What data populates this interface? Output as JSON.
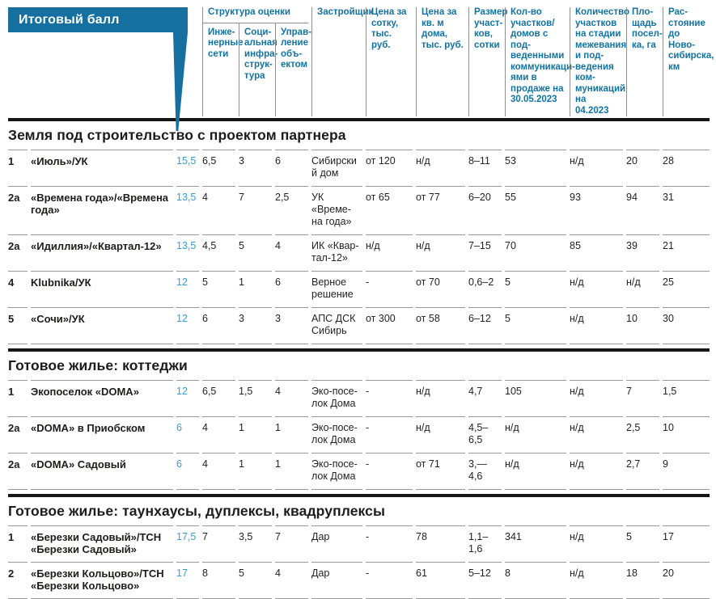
{
  "colors": {
    "accent_blue": "#15709f",
    "header_text_blue": "#1273a3",
    "score_blue": "#3f9acb",
    "rule_gray": "#999999",
    "rule_black": "#161616"
  },
  "callout": {
    "label": "Итоговый балл"
  },
  "header": {
    "group": "Структура оценки",
    "sub": [
      "Инже-нерные сети",
      "Соци-альная инфра-струк-тура",
      "Управ-ление объ-ектом"
    ],
    "cols": [
      "Застройщик",
      "Цена за сотку, тыс. руб.",
      "Цена за кв. м дома, тыс. руб.",
      "Размер участ-ков, сотки",
      "Кол-во участков/ домов с под-веденными коммуникаци-ями в продаже на 30.05.2023",
      "Количество участков на стадии межевания и под-ведения ком-муникаций на 04.2023",
      "Пло-щадь посел-ка, га",
      "Рас-стояние до Ново-сибирска, км"
    ]
  },
  "sections": [
    {
      "title": "Земля под строительство с проектом партнера",
      "rows": [
        {
          "rank": "1",
          "name": "«Июль»/УК",
          "score": "15,5",
          "eng": "6,5",
          "soc": "3",
          "mgmt": "6",
          "developer": "Сибирский дом",
          "price_sotka": "от 120",
          "price_m2": "н/д",
          "plot_size": "8–11",
          "lots_with_comms": "53",
          "lots_in_progress": "н/д",
          "area_ha": "20",
          "distance_km": "28"
        },
        {
          "rank": "2а",
          "name": "«Времена года»/«Времена года»",
          "score": "13,5",
          "eng": "4",
          "soc": "7",
          "mgmt": "2,5",
          "developer": "УК «Време-на года»",
          "price_sotka": "от 65",
          "price_m2": "от 77",
          "plot_size": "6–20",
          "lots_with_comms": "55",
          "lots_in_progress": "93",
          "area_ha": "94",
          "distance_km": "31"
        },
        {
          "rank": "2а",
          "name": "«Идиллия»/«Квартал-12»",
          "score": "13,5",
          "eng": "4,5",
          "soc": "5",
          "mgmt": "4",
          "developer": "ИК «Квар-тал-12»",
          "price_sotka": "н/д",
          "price_m2": "н/д",
          "plot_size": "7–15",
          "lots_with_comms": "70",
          "lots_in_progress": "85",
          "area_ha": "39",
          "distance_km": "21"
        },
        {
          "rank": "4",
          "name": "Klubnika/УК",
          "score": "12",
          "eng": "5",
          "soc": "1",
          "mgmt": "6",
          "developer": "Верное решение",
          "price_sotka": "-",
          "price_m2": "от 70",
          "plot_size": "0,6–2",
          "lots_with_comms": "5",
          "lots_in_progress": "н/д",
          "area_ha": "н/д",
          "distance_km": "25"
        },
        {
          "rank": "5",
          "name": "«Сочи»/УК",
          "score": "12",
          "eng": "6",
          "soc": "3",
          "mgmt": "3",
          "developer": "АПС ДСК Сибирь",
          "price_sotka": "от 300",
          "price_m2": "от 58",
          "plot_size": "6–12",
          "lots_with_comms": "5",
          "lots_in_progress": "н/д",
          "area_ha": "10",
          "distance_km": "30"
        }
      ]
    },
    {
      "title": "Готовое жилье: коттеджи",
      "rows": [
        {
          "rank": "1",
          "name": "Экопоселок «DOMA»",
          "score": "12",
          "eng": "6,5",
          "soc": "1,5",
          "mgmt": "4",
          "developer": "Эко-посе-лок Дома",
          "price_sotka": "-",
          "price_m2": "н/д",
          "plot_size": "4,7",
          "lots_with_comms": "105",
          "lots_in_progress": "н/д",
          "area_ha": "7",
          "distance_km": "1,5"
        },
        {
          "rank": "2а",
          "name": "«DOMA» в Приобском",
          "score": "6",
          "eng": "4",
          "soc": "1",
          "mgmt": "1",
          "developer": "Эко-посе-лок Дома",
          "price_sotka": "-",
          "price_m2": "н/д",
          "plot_size": "4,5–6,5",
          "lots_with_comms": "н/д",
          "lots_in_progress": "н/д",
          "area_ha": "2,5",
          "distance_km": "10"
        },
        {
          "rank": "2а",
          "name": "«DOMA» Садовый",
          "score": "6",
          "eng": "4",
          "soc": "1",
          "mgmt": "1",
          "developer": "Эко-посе-лок Дома",
          "price_sotka": "-",
          "price_m2": "от 71",
          "plot_size": "3,— 4,6",
          "lots_with_comms": "н/д",
          "lots_in_progress": "н/д",
          "area_ha": "2,7",
          "distance_km": "9"
        }
      ]
    },
    {
      "title": "Готовое жилье: таунхаусы, дуплексы, квадруплексы",
      "rows": [
        {
          "rank": "1",
          "name": "«Березки Садовый»/ТСН «Березки Садовый»",
          "score": "17,5",
          "eng": "7",
          "soc": "3,5",
          "mgmt": "7",
          "developer": "Дар",
          "price_sotka": "-",
          "price_m2": "78",
          "plot_size": "1,1–1,6",
          "lots_with_comms": "341",
          "lots_in_progress": "н/д",
          "area_ha": "5",
          "distance_km": "17"
        },
        {
          "rank": "2",
          "name": "«Березки Кольцово»/ТСН «Березки Кольцово»",
          "score": "17",
          "eng": "8",
          "soc": "5",
          "mgmt": "4",
          "developer": "Дар",
          "price_sotka": "-",
          "price_m2": "61",
          "plot_size": "5–12",
          "lots_with_comms": "8",
          "lots_in_progress": "н/д",
          "area_ha": "18",
          "distance_km": "20"
        }
      ]
    }
  ]
}
